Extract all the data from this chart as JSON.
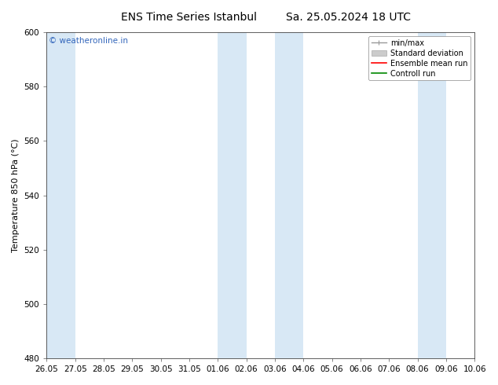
{
  "title": "ENS Time Series Istanbul",
  "subtitle": "Sa. 25.05.2024 18 UTC",
  "ylabel": "Temperature 850 hPa (°C)",
  "ylim": [
    480,
    600
  ],
  "yticks": [
    480,
    500,
    520,
    540,
    560,
    580,
    600
  ],
  "num_days": 15,
  "xtick_labels": [
    "26.05",
    "27.05",
    "28.05",
    "29.05",
    "30.05",
    "31.05",
    "01.06",
    "02.06",
    "03.06",
    "04.06",
    "05.06",
    "06.06",
    "07.06",
    "08.06",
    "09.06",
    "10.06"
  ],
  "shade_starts": [
    0,
    6,
    8,
    13
  ],
  "band_color": "#d8e8f5",
  "background_color": "#ffffff",
  "plot_bg_color": "#ffffff",
  "watermark": "© weatheronline.in",
  "watermark_color": "#3366bb",
  "legend_labels": [
    "min/max",
    "Standard deviation",
    "Ensemble mean run",
    "Controll run"
  ],
  "legend_line_color": "#999999",
  "legend_std_color": "#cccccc",
  "legend_ens_color": "#ff0000",
  "legend_ctrl_color": "#008800",
  "title_fontsize": 10,
  "tick_fontsize": 7.5,
  "ylabel_fontsize": 8,
  "legend_fontsize": 7
}
